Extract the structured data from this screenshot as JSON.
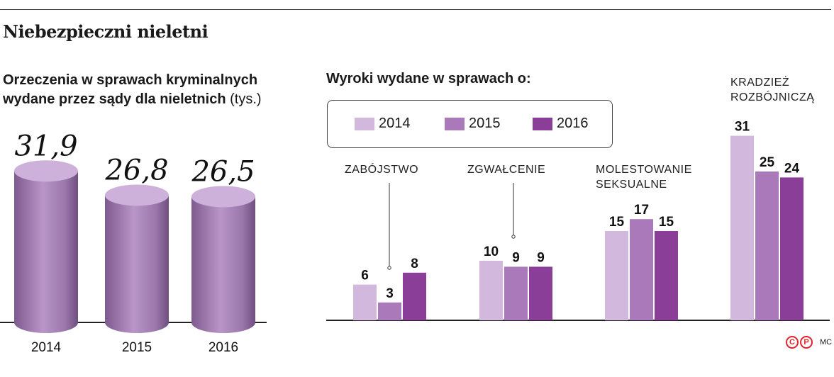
{
  "title": "Niebezpieczni nieletni",
  "chart_data": [
    {
      "type": "bar",
      "title": "Orzeczenia w sprawach kryminalnych wydane przez sądy dla nieletnich",
      "title_line1": "Orzeczenia w sprawach kryminalnych",
      "title_line2": "wydane przez sądy dla nieletnich",
      "unit": "(tys.)",
      "categories": [
        "2014",
        "2015",
        "2016"
      ],
      "values": [
        31.9,
        26.8,
        26.5
      ],
      "value_labels": [
        "31,9",
        "26,8",
        "26,5"
      ],
      "ylim": [
        0,
        35
      ],
      "grid": false,
      "color": "#b08cbd"
    },
    {
      "type": "bar",
      "title": "Wyroki wydane w sprawach o:",
      "categories": [
        "ZABÓJSTWO",
        "ZGWAŁCENIE",
        "MOLESTOWANIE SEKSUALNE",
        "KRADZIEŻ ROZBÓJNICZĄ"
      ],
      "category_lines": [
        [
          "ZABÓJSTWO"
        ],
        [
          "ZGWAŁCENIE"
        ],
        [
          "MOLESTOWANIE",
          "SEKSUALNE"
        ],
        [
          "KRADZIEŻ",
          "ROZBÓJNICZĄ"
        ]
      ],
      "series": [
        {
          "name": "2014",
          "values": [
            6,
            10,
            15,
            31
          ],
          "color": "#d2b8dc"
        },
        {
          "name": "2015",
          "values": [
            3,
            9,
            17,
            25
          ],
          "color": "#a979b9"
        },
        {
          "name": "2016",
          "values": [
            8,
            9,
            15,
            24
          ],
          "color": "#8b3e98"
        }
      ],
      "ylim": [
        0,
        35
      ],
      "grid": false,
      "legend": "top"
    }
  ],
  "source": {
    "logo": "cp-logo",
    "credit": "MC"
  }
}
